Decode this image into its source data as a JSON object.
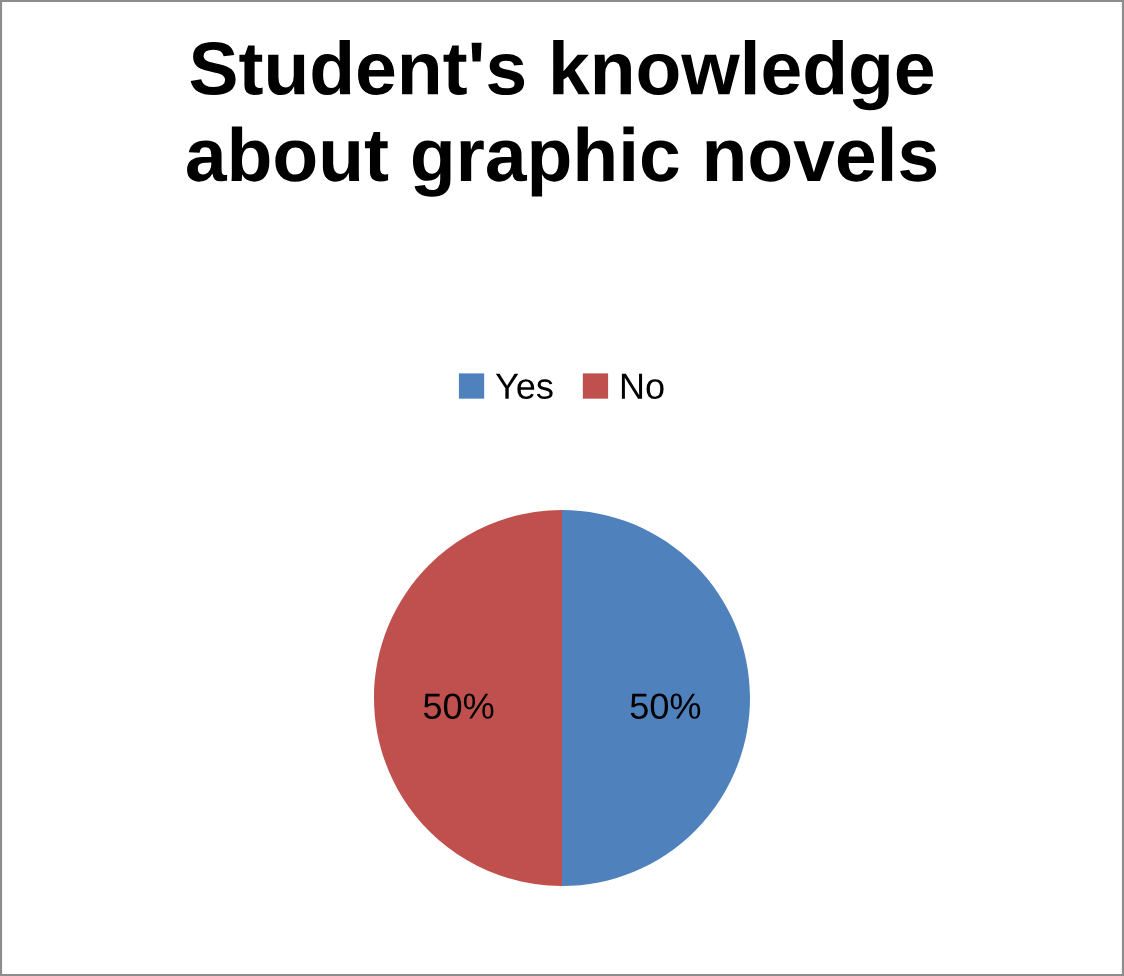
{
  "chart_data": {
    "type": "pie",
    "title": "Student's knowledge\nabout graphic novels",
    "categories": [
      "Yes",
      "No"
    ],
    "values": [
      50,
      50
    ],
    "colors": [
      "#4f81bd",
      "#c0504d"
    ],
    "value_labels": [
      "50%",
      "50%"
    ],
    "legend": "top"
  }
}
